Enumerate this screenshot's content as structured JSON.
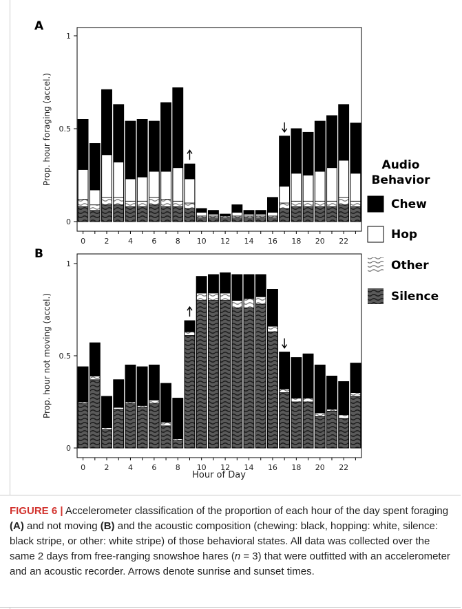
{
  "chart_data": [
    {
      "panel": "A",
      "type": "bar",
      "stacked": true,
      "ylabel": "Prop. hour foraging (accel.)",
      "xlabel": "",
      "ylim": [
        0,
        1
      ],
      "yticks": [
        "0",
        "0.5",
        "1"
      ],
      "xticks": [
        "0",
        "2",
        "4",
        "6",
        "8",
        "10",
        "12",
        "14",
        "16",
        "18",
        "20",
        "22"
      ],
      "x": [
        0,
        1,
        2,
        3,
        4,
        5,
        6,
        7,
        8,
        9,
        10,
        11,
        12,
        13,
        14,
        15,
        16,
        17,
        18,
        19,
        20,
        21,
        22,
        23
      ],
      "series": [
        {
          "name": "Silence",
          "values": [
            0.08,
            0.06,
            0.09,
            0.09,
            0.08,
            0.08,
            0.09,
            0.08,
            0.08,
            0.07,
            0.02,
            0.02,
            0.02,
            0.02,
            0.02,
            0.02,
            0.02,
            0.07,
            0.08,
            0.08,
            0.08,
            0.08,
            0.09,
            0.08
          ]
        },
        {
          "name": "Other",
          "values": [
            0.04,
            0.03,
            0.04,
            0.04,
            0.03,
            0.03,
            0.04,
            0.04,
            0.03,
            0.03,
            0.01,
            0.01,
            0.01,
            0.01,
            0.01,
            0.01,
            0.01,
            0.03,
            0.03,
            0.03,
            0.03,
            0.03,
            0.04,
            0.03
          ]
        },
        {
          "name": "Hop",
          "values": [
            0.16,
            0.08,
            0.23,
            0.19,
            0.12,
            0.13,
            0.14,
            0.15,
            0.18,
            0.13,
            0.02,
            0.01,
            0.0,
            0.02,
            0.01,
            0.01,
            0.02,
            0.09,
            0.15,
            0.14,
            0.16,
            0.18,
            0.2,
            0.15
          ]
        },
        {
          "name": "Chew",
          "values": [
            0.27,
            0.25,
            0.35,
            0.31,
            0.31,
            0.31,
            0.27,
            0.37,
            0.43,
            0.08,
            0.02,
            0.02,
            0.01,
            0.04,
            0.02,
            0.02,
            0.08,
            0.27,
            0.24,
            0.23,
            0.27,
            0.28,
            0.3,
            0.27
          ]
        }
      ],
      "arrows": [
        {
          "x": 9,
          "direction": "up"
        },
        {
          "x": 17,
          "direction": "down"
        }
      ]
    },
    {
      "panel": "B",
      "type": "bar",
      "stacked": true,
      "ylabel": "Prop. hour not moving (accel.)",
      "xlabel": "Hour of Day",
      "ylim": [
        0,
        1
      ],
      "yticks": [
        "0",
        "0.5",
        "1"
      ],
      "xticks": [
        "0",
        "2",
        "4",
        "6",
        "8",
        "10",
        "12",
        "14",
        "16",
        "18",
        "20",
        "22"
      ],
      "x": [
        0,
        1,
        2,
        3,
        4,
        5,
        6,
        7,
        8,
        9,
        10,
        11,
        12,
        13,
        14,
        15,
        16,
        17,
        18,
        19,
        20,
        21,
        22,
        23
      ],
      "series": [
        {
          "name": "Silence",
          "values": [
            0.24,
            0.37,
            0.1,
            0.21,
            0.24,
            0.22,
            0.24,
            0.12,
            0.04,
            0.61,
            0.8,
            0.8,
            0.8,
            0.76,
            0.76,
            0.78,
            0.63,
            0.3,
            0.25,
            0.25,
            0.17,
            0.2,
            0.16,
            0.28
          ]
        },
        {
          "name": "Other",
          "values": [
            0.01,
            0.02,
            0.01,
            0.01,
            0.01,
            0.01,
            0.02,
            0.02,
            0.01,
            0.02,
            0.04,
            0.04,
            0.04,
            0.04,
            0.05,
            0.04,
            0.03,
            0.02,
            0.02,
            0.02,
            0.02,
            0.01,
            0.02,
            0.02
          ]
        },
        {
          "name": "Hop",
          "values": [
            0.0,
            0.0,
            0.0,
            0.0,
            0.0,
            0.0,
            0.0,
            0.0,
            0.0,
            0.0,
            0.0,
            0.0,
            0.0,
            0.0,
            0.0,
            0.0,
            0.0,
            0.0,
            0.0,
            0.0,
            0.0,
            0.0,
            0.0,
            0.0
          ]
        },
        {
          "name": "Chew",
          "values": [
            0.19,
            0.18,
            0.17,
            0.15,
            0.2,
            0.21,
            0.19,
            0.21,
            0.22,
            0.06,
            0.09,
            0.1,
            0.11,
            0.14,
            0.13,
            0.12,
            0.2,
            0.2,
            0.22,
            0.24,
            0.26,
            0.18,
            0.18,
            0.16
          ]
        }
      ],
      "arrows": [
        {
          "x": 9,
          "direction": "up"
        },
        {
          "x": 17,
          "direction": "down"
        }
      ]
    }
  ],
  "legend": {
    "title_line1": "Audio",
    "title_line2": "Behavior",
    "items": [
      {
        "label": "Chew",
        "swatch": "solid-black"
      },
      {
        "label": "Hop",
        "swatch": "white"
      },
      {
        "label": "Other",
        "swatch": "white-stripe"
      },
      {
        "label": "Silence",
        "swatch": "black-stripe"
      }
    ]
  },
  "colors": {
    "chew": "#000000",
    "hop": "#ffffff",
    "other_bg": "#ffffff",
    "other_stripe": "#777777",
    "silence_bg": "#555555",
    "silence_stripe": "#222222",
    "figure_label": "#d2322d"
  },
  "caption": {
    "label": "FIGURE 6 |",
    "part1": " Accelerometer classification of the proportion of each hour of the day spent foraging ",
    "bold_a": "(A)",
    "part2": " and not moving ",
    "bold_b": "(B)",
    "part3": " and the acoustic composition (chewing: black, hopping: white, silence: black stripe, or other: white stripe) of those behavioral states. All data was collected over the same 2 days from free-ranging snowshoe hares (",
    "n_var": "n",
    "part4": " = 3) that were outfitted with an accelerometer and an acoustic recorder. Arrows denote sunrise and sunset times."
  }
}
